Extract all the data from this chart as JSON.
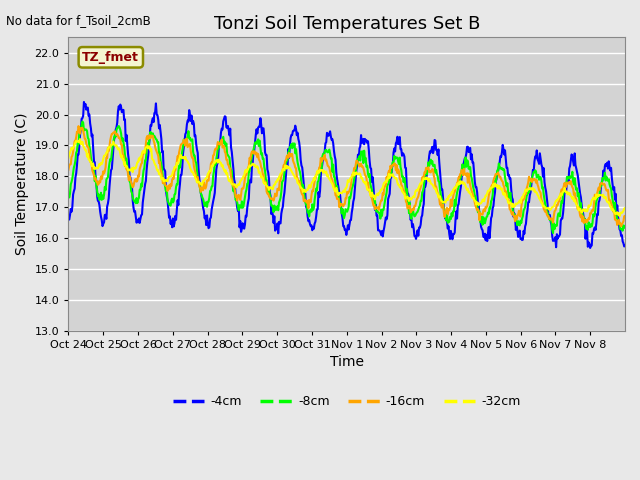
{
  "title": "Tonzi Soil Temperatures Set B",
  "xlabel": "Time",
  "ylabel": "Soil Temperature (C)",
  "top_left_note": "No data for f_Tsoil_2cmB",
  "legend_label_note": "TZ_fmet",
  "ylim": [
    13.0,
    22.5
  ],
  "yticks": [
    13.0,
    14.0,
    15.0,
    16.0,
    17.0,
    18.0,
    19.0,
    20.0,
    21.0,
    22.0
  ],
  "x_tick_labels": [
    "Oct 24",
    "Oct 25",
    "Oct 26",
    "Oct 27",
    "Oct 28",
    "Oct 29",
    "Oct 30",
    "Oct 31",
    "Nov 1",
    "Nov 2",
    "Nov 3",
    "Nov 4",
    "Nov 5",
    "Nov 6",
    "Nov 7",
    "Nov 8"
  ],
  "colors": {
    "4cm": "#0000ff",
    "8cm": "#00ff00",
    "16cm": "#ffa500",
    "32cm": "#ffff00"
  },
  "line_widths": {
    "4cm": 1.5,
    "8cm": 1.5,
    "16cm": 1.5,
    "32cm": 1.5
  },
  "legend_entries": [
    "-4cm",
    "-8cm",
    "-16cm",
    "-32cm"
  ],
  "background_color": "#e8e8e8",
  "plot_bg_color": "#d3d3d3",
  "grid_color": "#ffffff",
  "n_points": 720,
  "n_days": 16
}
